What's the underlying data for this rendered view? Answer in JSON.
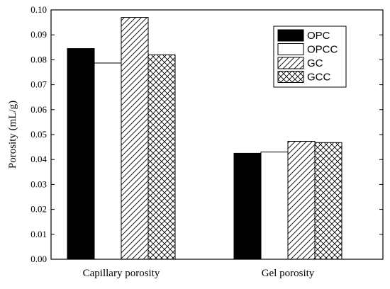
{
  "chart_data": {
    "type": "bar",
    "title": "",
    "xlabel": "",
    "ylabel": "Porosity (mL/g)",
    "ylim": [
      0,
      0.1
    ],
    "yticks": [
      "0.00",
      "0.01",
      "0.02",
      "0.03",
      "0.04",
      "0.05",
      "0.06",
      "0.07",
      "0.08",
      "0.09",
      "0.10"
    ],
    "grid": false,
    "legend_position": "top-right",
    "categories": [
      "Capillary porosity",
      "Gel porosity"
    ],
    "series": [
      {
        "name": "OPC",
        "fill": "solid-black",
        "values": [
          0.0845,
          0.0425
        ]
      },
      {
        "name": "OPCC",
        "fill": "white",
        "values": [
          0.0787,
          0.043
        ]
      },
      {
        "name": "GC",
        "fill": "diagonal-hatch",
        "values": [
          0.097,
          0.0473
        ]
      },
      {
        "name": "GCC",
        "fill": "cross-hatch",
        "values": [
          0.082,
          0.0468
        ]
      }
    ]
  }
}
